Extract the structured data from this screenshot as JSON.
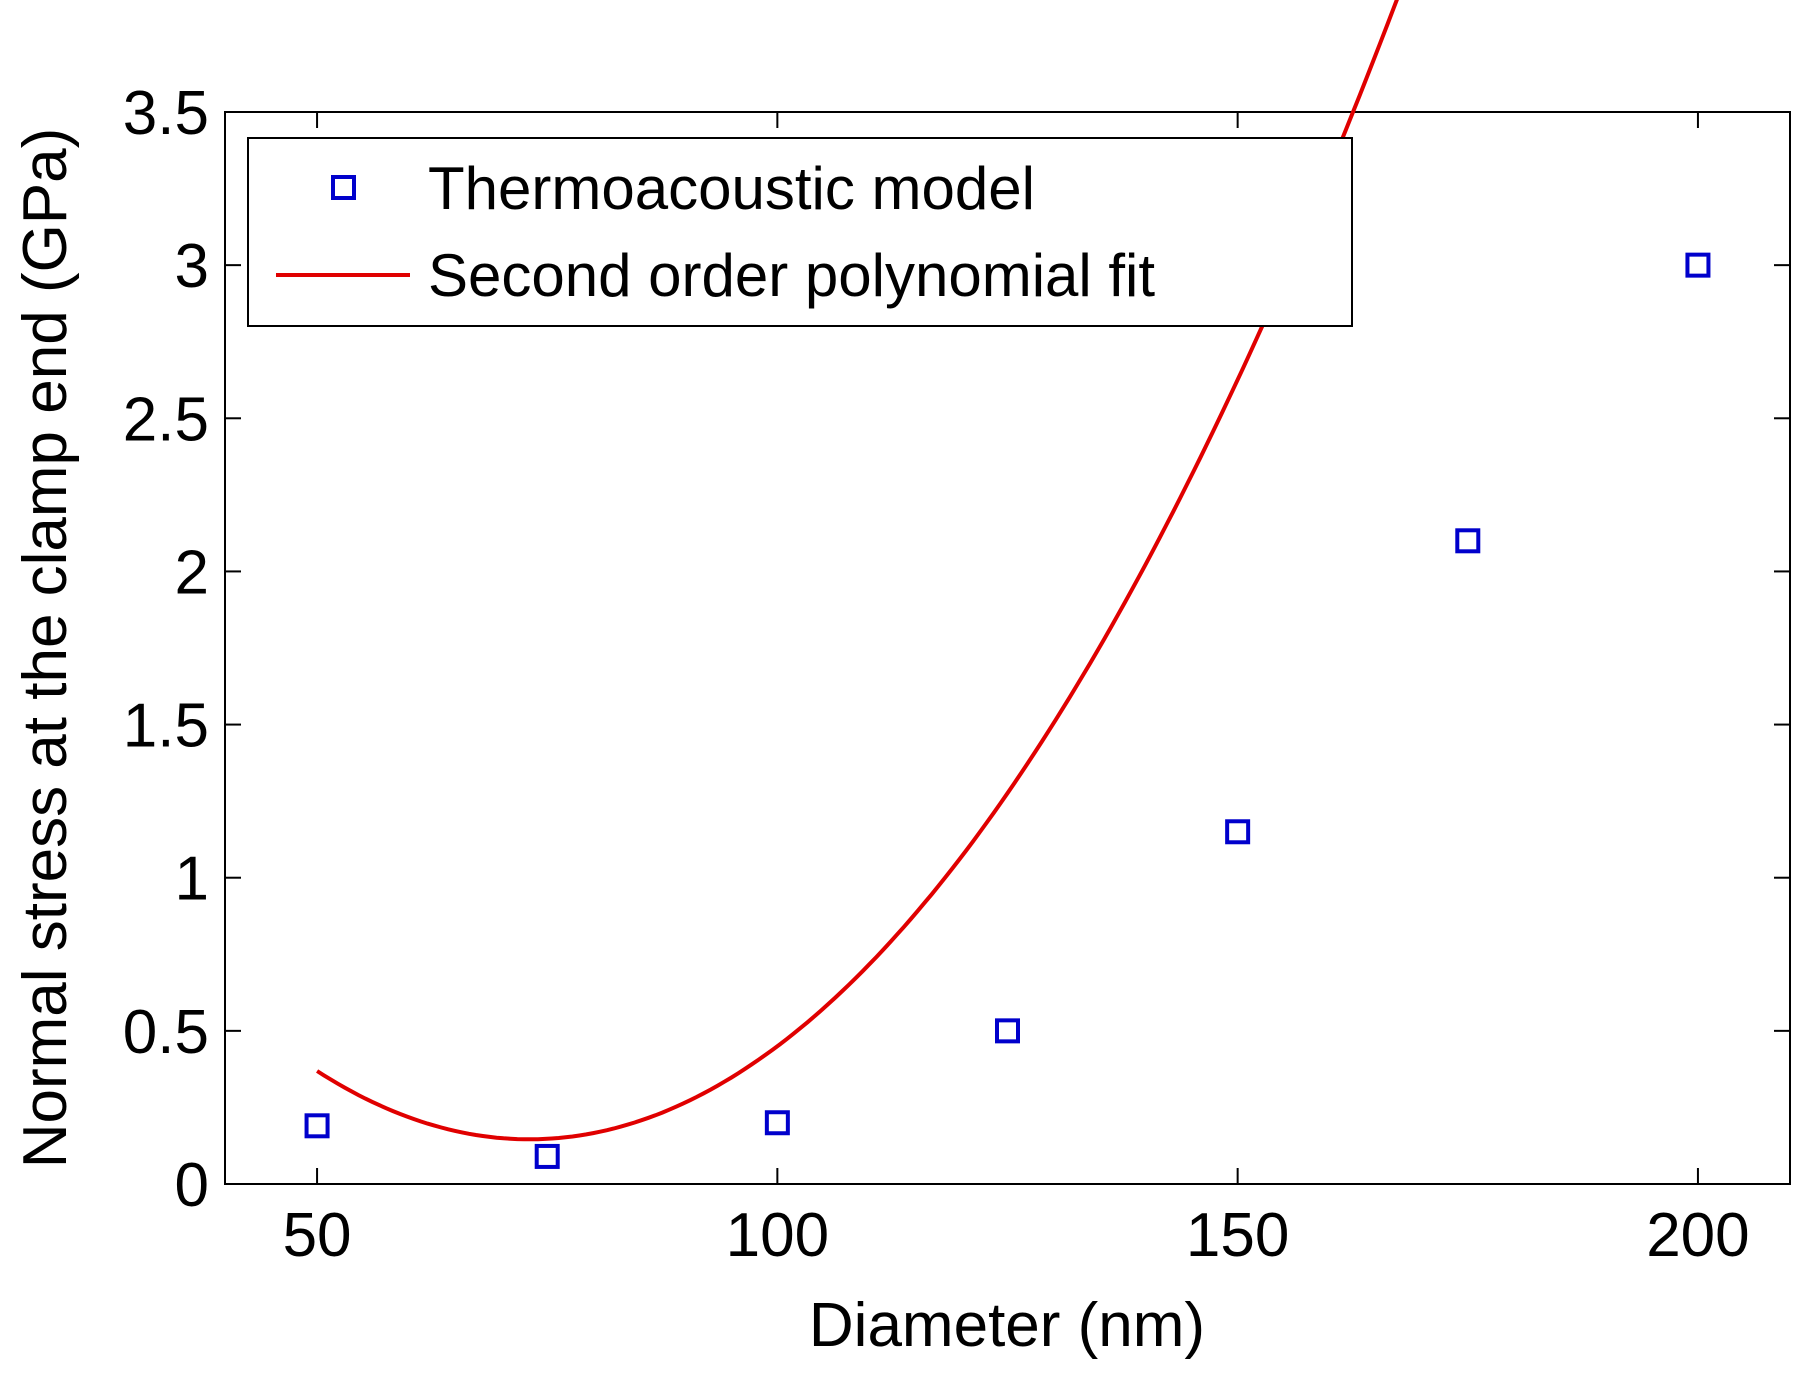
{
  "chart_data": {
    "type": "scatter",
    "title": "",
    "xlabel": "Diameter (nm)",
    "ylabel": "Normal stress at the clamp end (GPa)",
    "xlim": [
      40,
      210
    ],
    "ylim": [
      0,
      3.5
    ],
    "xticks": [
      50,
      100,
      150,
      200
    ],
    "xtick_labels": [
      "50",
      "100",
      "150",
      "200"
    ],
    "yticks": [
      0,
      0.5,
      1,
      1.5,
      2,
      2.5,
      3,
      3.5
    ],
    "ytick_labels": [
      "0",
      "0.5",
      "1",
      "1.5",
      "2",
      "2.5",
      "3",
      "3.5"
    ],
    "grid": false,
    "legend_position": "top-left",
    "series": [
      {
        "name": "Thermoacoustic model",
        "kind": "markers",
        "marker": "square",
        "color": "#0000cc",
        "x": [
          50,
          75,
          100,
          125,
          150,
          175,
          200
        ],
        "y": [
          0.19,
          0.09,
          0.2,
          0.5,
          1.15,
          2.1,
          3.0
        ]
      },
      {
        "name": "Second order polynomial fit",
        "kind": "line",
        "color": "#e00000",
        "x_range": [
          50,
          200
        ],
        "coefficients": [
          2.3829,
          -0.06123,
          0.000419
        ]
      }
    ]
  }
}
